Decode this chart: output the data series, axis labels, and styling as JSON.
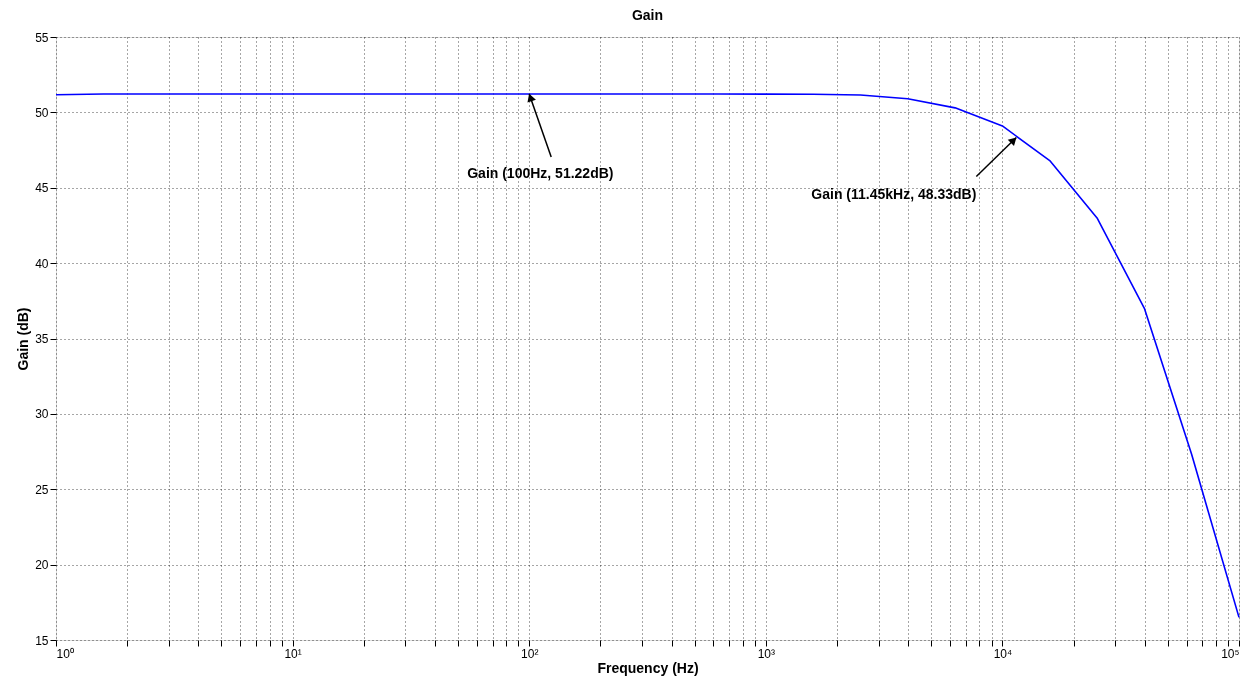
{
  "chart_data": {
    "type": "line",
    "title": "Gain",
    "xlabel": "Frequency (Hz)",
    "ylabel": "Gain (dB)",
    "x": [
      1,
      1.585,
      2.512,
      3.981,
      6.31,
      10,
      15.85,
      25.12,
      39.81,
      63.1,
      100,
      158.5,
      251.2,
      398.1,
      631,
      1000,
      1585,
      2512,
      3981,
      6310,
      10000,
      15850,
      25120,
      39810,
      63100,
      100000
    ],
    "series": [
      {
        "color": "#0000ff",
        "values": [
          51.17,
          51.22,
          51.22,
          51.22,
          51.22,
          51.22,
          51.22,
          51.22,
          51.22,
          51.22,
          51.22,
          51.22,
          51.22,
          51.22,
          51.22,
          51.21,
          51.2,
          51.15,
          50.9,
          50.3,
          49.1,
          46.8,
          43.0,
          37.0,
          27.3,
          16.5
        ]
      }
    ],
    "log": "x",
    "xlim": [
      1,
      100000
    ],
    "ylim": [
      15,
      55
    ],
    "xticks": [
      {
        "value": 1,
        "label": "10⁰"
      },
      {
        "value": 2,
        "label": null
      },
      {
        "value": 3,
        "label": null
      },
      {
        "value": 4,
        "label": null
      },
      {
        "value": 5,
        "label": null
      },
      {
        "value": 6,
        "label": null
      },
      {
        "value": 7,
        "label": null
      },
      {
        "value": 8,
        "label": null
      },
      {
        "value": 9,
        "label": null
      },
      {
        "value": 10,
        "label": "10¹"
      },
      {
        "value": 20,
        "label": null
      },
      {
        "value": 30,
        "label": null
      },
      {
        "value": 40,
        "label": null
      },
      {
        "value": 50,
        "label": null
      },
      {
        "value": 60,
        "label": null
      },
      {
        "value": 70,
        "label": null
      },
      {
        "value": 80,
        "label": null
      },
      {
        "value": 90,
        "label": null
      },
      {
        "value": 100,
        "label": "10²"
      },
      {
        "value": 200,
        "label": null
      },
      {
        "value": 300,
        "label": null
      },
      {
        "value": 400,
        "label": null
      },
      {
        "value": 500,
        "label": null
      },
      {
        "value": 600,
        "label": null
      },
      {
        "value": 700,
        "label": null
      },
      {
        "value": 800,
        "label": null
      },
      {
        "value": 900,
        "label": null
      },
      {
        "value": 1000,
        "label": "10³"
      },
      {
        "value": 2000,
        "label": null
      },
      {
        "value": 3000,
        "label": null
      },
      {
        "value": 4000,
        "label": null
      },
      {
        "value": 5000,
        "label": null
      },
      {
        "value": 6000,
        "label": null
      },
      {
        "value": 7000,
        "label": null
      },
      {
        "value": 8000,
        "label": null
      },
      {
        "value": 9000,
        "label": null
      },
      {
        "value": 10000,
        "label": "10⁴"
      },
      {
        "value": 20000,
        "label": null
      },
      {
        "value": 30000,
        "label": null
      },
      {
        "value": 40000,
        "label": null
      },
      {
        "value": 50000,
        "label": null
      },
      {
        "value": 60000,
        "label": null
      },
      {
        "value": 70000,
        "label": null
      },
      {
        "value": 80000,
        "label": null
      },
      {
        "value": 90000,
        "label": null
      },
      {
        "value": 100000,
        "label": "10⁵"
      }
    ],
    "yticks": [
      15,
      20,
      25,
      30,
      35,
      40,
      45,
      50,
      55
    ],
    "grid": true,
    "marker": "none",
    "line_style": "solid",
    "annotations": [
      {
        "text": "Gain (100Hz, 51.22dB)",
        "x": 100,
        "y": 51.22
      },
      {
        "text": "Gain (11.45kHz, 48.33dB)",
        "x": 11450,
        "y": 48.33
      }
    ]
  }
}
